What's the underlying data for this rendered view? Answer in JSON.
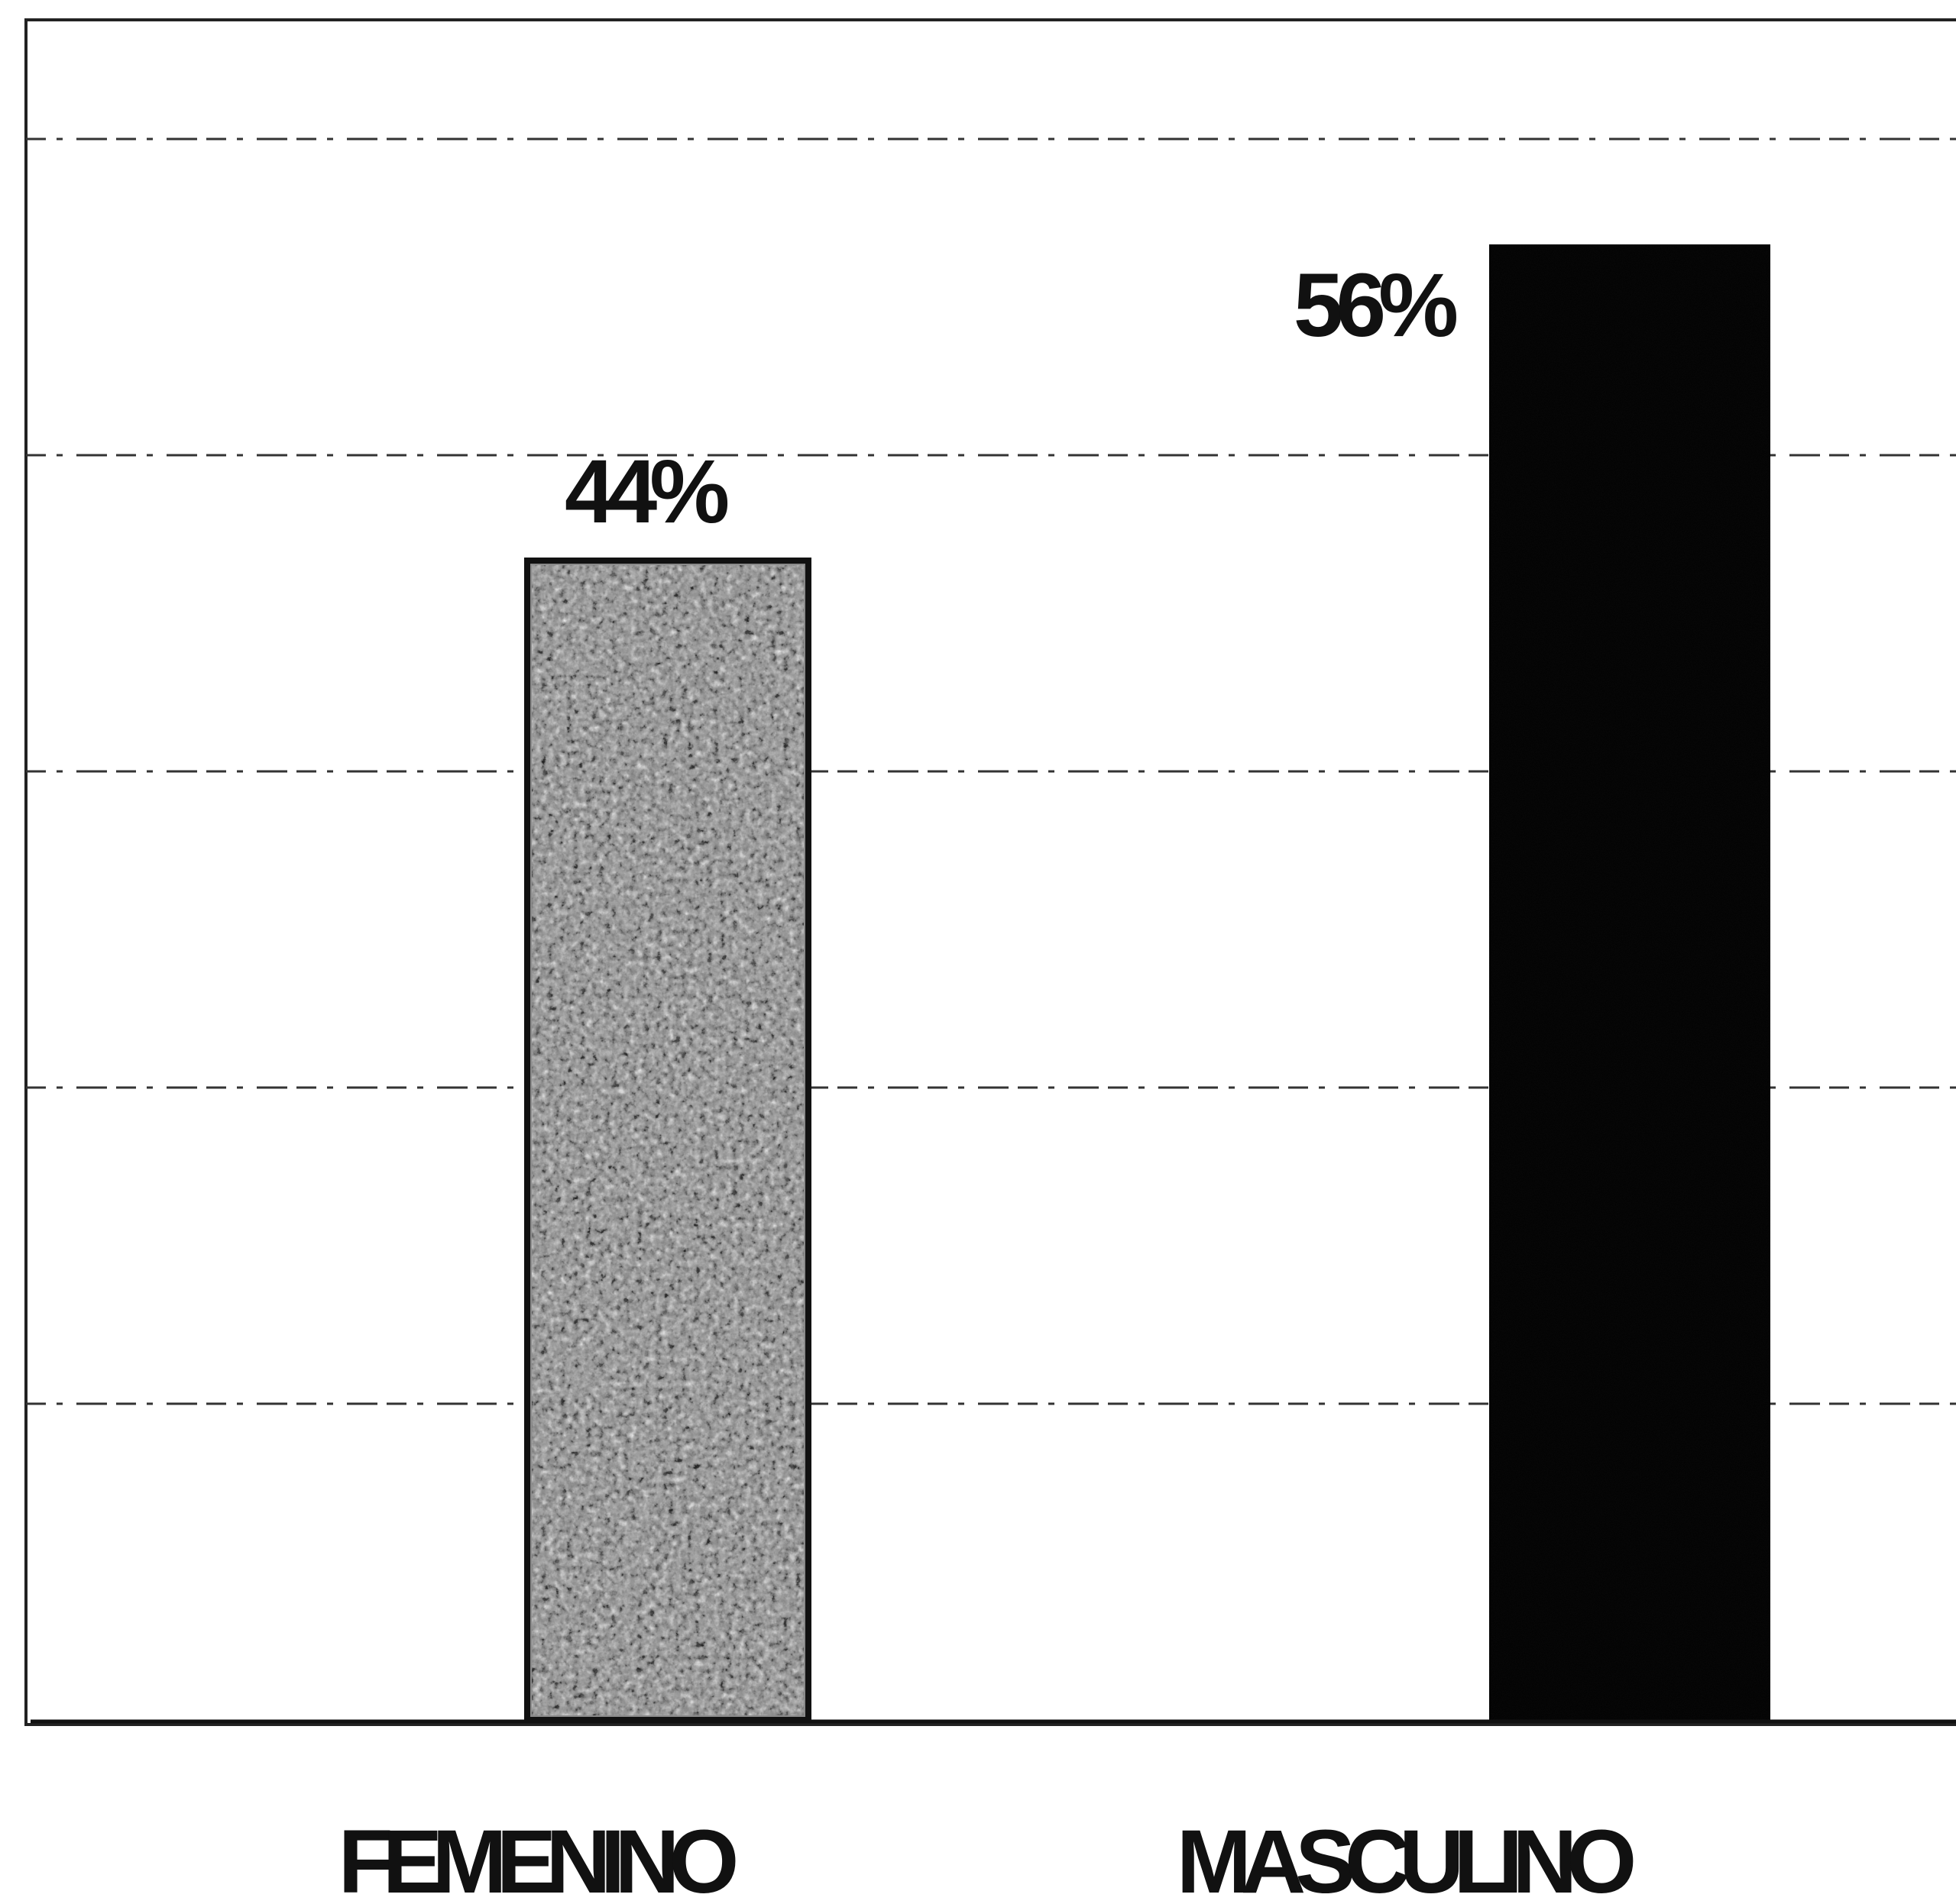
{
  "chart_data": {
    "type": "bar",
    "categories": [
      "FEMENINO",
      "MASCULINO"
    ],
    "values": [
      44,
      56
    ],
    "data_labels": [
      "44%",
      "56%"
    ],
    "title": "",
    "xlabel": "",
    "ylabel": "",
    "ylim": [
      0,
      60
    ],
    "grid": true,
    "legend": "none",
    "colors": [
      "#8a8a8a",
      "#0a0a0a"
    ],
    "bar_patterns": [
      "gray-speckled",
      "solid-black"
    ]
  }
}
